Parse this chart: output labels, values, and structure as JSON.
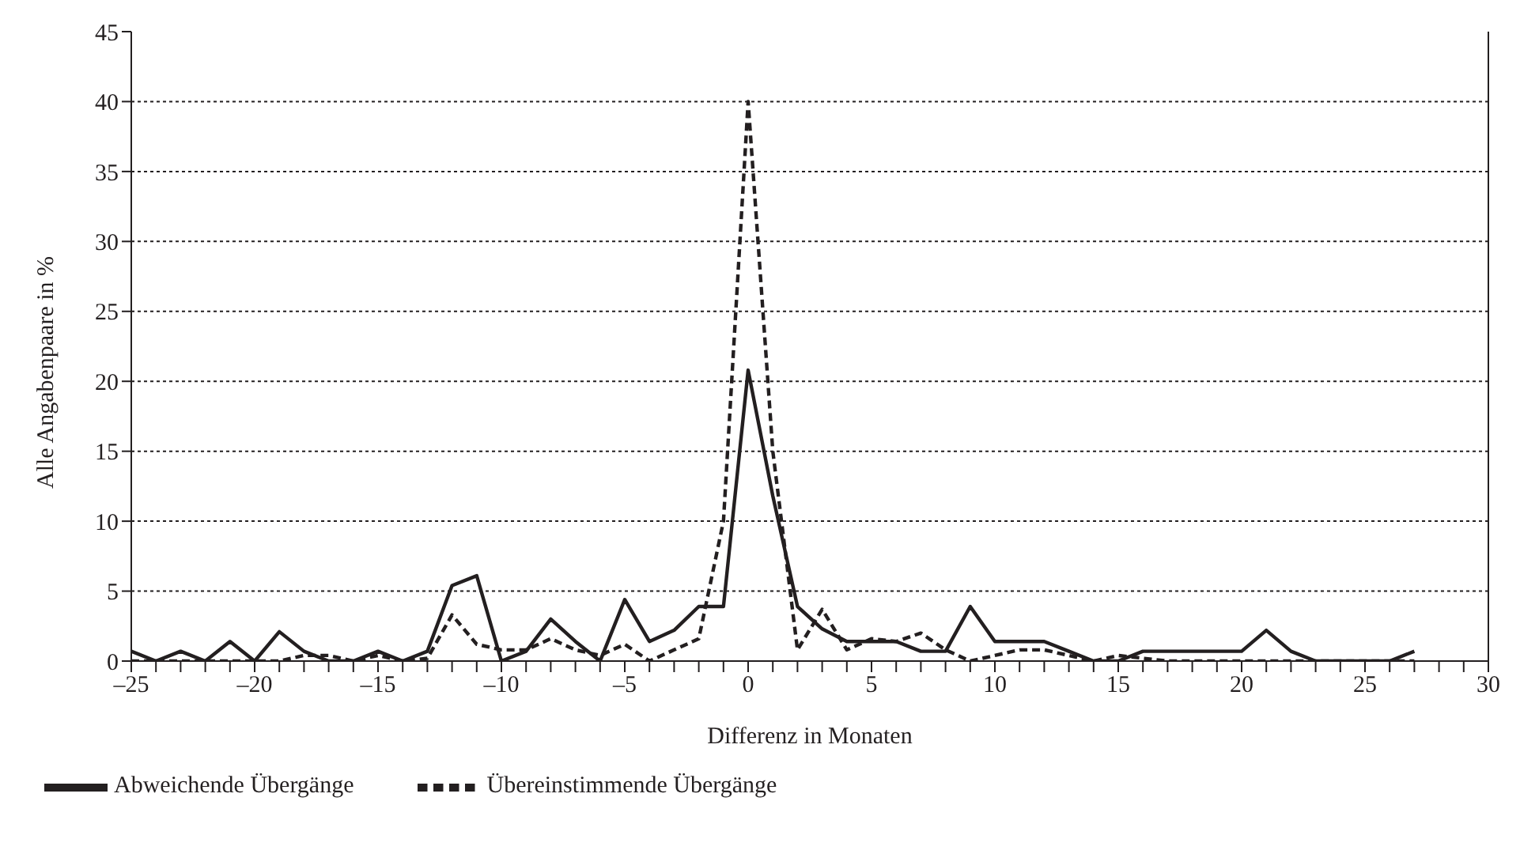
{
  "chart_data": {
    "type": "line",
    "xlabel": "Differenz in Monaten",
    "ylabel": "Alle Angabenpaare in %",
    "x": [
      -25,
      -24,
      -23,
      -22,
      -21,
      -20,
      -19,
      -18,
      -17,
      -16,
      -15,
      -14,
      -13,
      -12,
      -11,
      -10,
      -9,
      -8,
      -7,
      -6,
      -5,
      -4,
      -3,
      -2,
      -1,
      0,
      1,
      2,
      3,
      4,
      5,
      6,
      7,
      8,
      9,
      10,
      11,
      12,
      13,
      14,
      15,
      16,
      17,
      18,
      19,
      20,
      21,
      22,
      23,
      24,
      25,
      26,
      27
    ],
    "series": [
      {
        "name": "Abweichende Übergänge",
        "color": "#231f20",
        "line_style": "solid",
        "values": [
          0.7,
          0,
          0.7,
          0,
          1.4,
          0,
          2.1,
          0.7,
          0,
          0,
          0.7,
          0,
          0.7,
          5.4,
          6.1,
          0,
          0.7,
          3.0,
          1.4,
          0,
          4.4,
          1.4,
          2.2,
          3.9,
          3.9,
          20.8,
          11.8,
          3.9,
          2.3,
          1.4,
          1.4,
          1.4,
          0.7,
          0.7,
          3.9,
          1.4,
          1.4,
          1.4,
          0.7,
          0,
          0,
          0.7,
          0.7,
          0.7,
          0.7,
          0.7,
          2.2,
          0.7,
          0,
          0,
          0,
          0,
          0.7
        ]
      },
      {
        "name": "Übereinstimmende Übergänge",
        "color": "#231f20",
        "line_style": "dashed",
        "values": [
          0,
          0,
          0,
          0,
          0,
          0,
          0,
          0.4,
          0.4,
          0,
          0.4,
          0,
          0.2,
          3.3,
          1.2,
          0.8,
          0.8,
          1.6,
          0.8,
          0.4,
          1.2,
          0,
          0.8,
          1.6,
          10,
          40,
          15,
          0.8,
          3.7,
          0.8,
          1.6,
          1.4,
          2.0,
          0.8,
          0,
          0.4,
          0.8,
          0.8,
          0.4,
          0,
          0.4,
          0.2,
          0,
          0,
          0,
          0,
          0,
          0,
          0,
          0,
          0,
          0,
          0
        ]
      }
    ],
    "xlim": [
      -25,
      30
    ],
    "xticks": [
      {
        "value": -25,
        "label": "–25"
      },
      {
        "value": -24,
        "label": null
      },
      {
        "value": -23,
        "label": null
      },
      {
        "value": -22,
        "label": null
      },
      {
        "value": -21,
        "label": null
      },
      {
        "value": -20,
        "label": "–20"
      },
      {
        "value": -19,
        "label": null
      },
      {
        "value": -18,
        "label": null
      },
      {
        "value": -17,
        "label": null
      },
      {
        "value": -16,
        "label": null
      },
      {
        "value": -15,
        "label": "–15"
      },
      {
        "value": -14,
        "label": null
      },
      {
        "value": -13,
        "label": null
      },
      {
        "value": -12,
        "label": null
      },
      {
        "value": -11,
        "label": null
      },
      {
        "value": -10,
        "label": "–10"
      },
      {
        "value": -9,
        "label": null
      },
      {
        "value": -8,
        "label": null
      },
      {
        "value": -7,
        "label": null
      },
      {
        "value": -6,
        "label": null
      },
      {
        "value": -5,
        "label": "–5"
      },
      {
        "value": -4,
        "label": null
      },
      {
        "value": -3,
        "label": null
      },
      {
        "value": -2,
        "label": null
      },
      {
        "value": -1,
        "label": null
      },
      0,
      {
        "value": 1,
        "label": null
      },
      {
        "value": 2,
        "label": null
      },
      {
        "value": 3,
        "label": null
      },
      {
        "value": 4,
        "label": null
      },
      5,
      {
        "value": 6,
        "label": null
      },
      {
        "value": 7,
        "label": null
      },
      {
        "value": 8,
        "label": null
      },
      {
        "value": 9,
        "label": null
      },
      10,
      {
        "value": 11,
        "label": null
      },
      {
        "value": 12,
        "label": null
      },
      {
        "value": 13,
        "label": null
      },
      {
        "value": 14,
        "label": null
      },
      15,
      {
        "value": 16,
        "label": null
      },
      {
        "value": 17,
        "label": null
      },
      {
        "value": 18,
        "label": null
      },
      {
        "value": 19,
        "label": null
      },
      20,
      {
        "value": 21,
        "label": null
      },
      {
        "value": 22,
        "label": null
      },
      {
        "value": 23,
        "label": null
      },
      {
        "value": 24,
        "label": null
      },
      25,
      {
        "value": 26,
        "label": null
      },
      {
        "value": 27,
        "label": null
      },
      {
        "value": 28,
        "label": null
      },
      {
        "value": 29,
        "label": null
      },
      30
    ],
    "ylim": [
      0,
      45
    ],
    "yticks": [
      0,
      5,
      10,
      15,
      20,
      25,
      30,
      35,
      40,
      45
    ],
    "grid": "y",
    "legend": "bottom left",
    "marker": "none"
  }
}
